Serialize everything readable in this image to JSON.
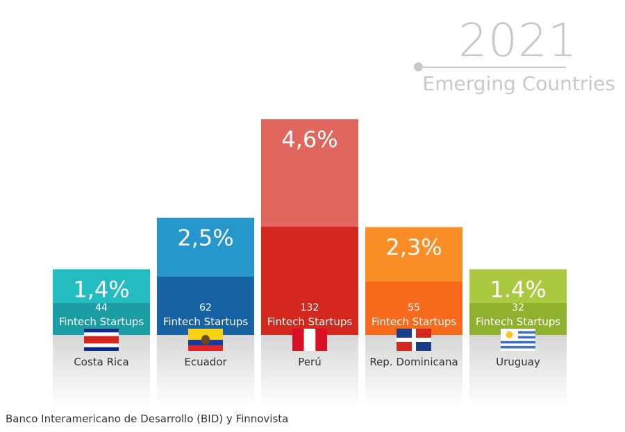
{
  "header": {
    "year": "2021",
    "subtitle": "Emerging Countries"
  },
  "source": "Banco Interamericano de Desarrollo (BID) y Finnovista",
  "chart_data": {
    "type": "bar",
    "categories": [
      "Costa Rica",
      "Ecuador",
      "Perú",
      "Rep. Dominicana",
      "Uruguay"
    ],
    "percent_labels": [
      "1,4%",
      "2,5%",
      "4,6%",
      "2,3%",
      "1.4%"
    ],
    "values": [
      1.4,
      2.5,
      4.6,
      2.3,
      1.4
    ],
    "startups": [
      44,
      62,
      132,
      55,
      32
    ],
    "startups_label": "Fintech Startups",
    "colors": {
      "top": [
        "#23bcc0",
        "#2697cc",
        "#df675e",
        "#f98e26",
        "#aac840"
      ],
      "bottom": [
        "#1a9ea3",
        "#1762a3",
        "#d4281f",
        "#f86a1c",
        "#90b12d"
      ]
    },
    "flags": [
      "costa-rica-flag-icon",
      "ecuador-flag-icon",
      "peru-flag-icon",
      "dominican-republic-flag-icon",
      "uruguay-flag-icon"
    ]
  }
}
